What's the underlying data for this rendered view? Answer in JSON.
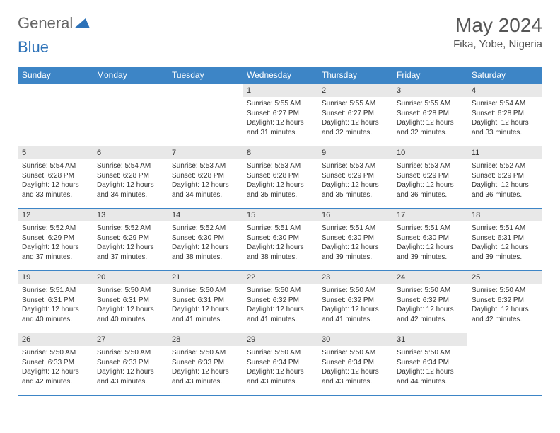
{
  "logo": {
    "part1": "General",
    "part2": "Blue"
  },
  "title": "May 2024",
  "location": "Fika, Yobe, Nigeria",
  "colors": {
    "header_bg": "#3d85c6",
    "header_fg": "#ffffff",
    "daynum_bg": "#e8e8e8",
    "border": "#3d85c6",
    "title_color": "#555555",
    "text_color": "#333333",
    "logo_gray": "#666666",
    "logo_blue": "#2d72b8"
  },
  "weekdays": [
    "Sunday",
    "Monday",
    "Tuesday",
    "Wednesday",
    "Thursday",
    "Friday",
    "Saturday"
  ],
  "weeks": [
    [
      {
        "n": "",
        "sr": "",
        "ss": "",
        "dl": "",
        "empty": true
      },
      {
        "n": "",
        "sr": "",
        "ss": "",
        "dl": "",
        "empty": true
      },
      {
        "n": "",
        "sr": "",
        "ss": "",
        "dl": "",
        "empty": true
      },
      {
        "n": "1",
        "sr": "Sunrise: 5:55 AM",
        "ss": "Sunset: 6:27 PM",
        "dl": "Daylight: 12 hours and 31 minutes."
      },
      {
        "n": "2",
        "sr": "Sunrise: 5:55 AM",
        "ss": "Sunset: 6:27 PM",
        "dl": "Daylight: 12 hours and 32 minutes."
      },
      {
        "n": "3",
        "sr": "Sunrise: 5:55 AM",
        "ss": "Sunset: 6:28 PM",
        "dl": "Daylight: 12 hours and 32 minutes."
      },
      {
        "n": "4",
        "sr": "Sunrise: 5:54 AM",
        "ss": "Sunset: 6:28 PM",
        "dl": "Daylight: 12 hours and 33 minutes."
      }
    ],
    [
      {
        "n": "5",
        "sr": "Sunrise: 5:54 AM",
        "ss": "Sunset: 6:28 PM",
        "dl": "Daylight: 12 hours and 33 minutes."
      },
      {
        "n": "6",
        "sr": "Sunrise: 5:54 AM",
        "ss": "Sunset: 6:28 PM",
        "dl": "Daylight: 12 hours and 34 minutes."
      },
      {
        "n": "7",
        "sr": "Sunrise: 5:53 AM",
        "ss": "Sunset: 6:28 PM",
        "dl": "Daylight: 12 hours and 34 minutes."
      },
      {
        "n": "8",
        "sr": "Sunrise: 5:53 AM",
        "ss": "Sunset: 6:28 PM",
        "dl": "Daylight: 12 hours and 35 minutes."
      },
      {
        "n": "9",
        "sr": "Sunrise: 5:53 AM",
        "ss": "Sunset: 6:29 PM",
        "dl": "Daylight: 12 hours and 35 minutes."
      },
      {
        "n": "10",
        "sr": "Sunrise: 5:53 AM",
        "ss": "Sunset: 6:29 PM",
        "dl": "Daylight: 12 hours and 36 minutes."
      },
      {
        "n": "11",
        "sr": "Sunrise: 5:52 AM",
        "ss": "Sunset: 6:29 PM",
        "dl": "Daylight: 12 hours and 36 minutes."
      }
    ],
    [
      {
        "n": "12",
        "sr": "Sunrise: 5:52 AM",
        "ss": "Sunset: 6:29 PM",
        "dl": "Daylight: 12 hours and 37 minutes."
      },
      {
        "n": "13",
        "sr": "Sunrise: 5:52 AM",
        "ss": "Sunset: 6:29 PM",
        "dl": "Daylight: 12 hours and 37 minutes."
      },
      {
        "n": "14",
        "sr": "Sunrise: 5:52 AM",
        "ss": "Sunset: 6:30 PM",
        "dl": "Daylight: 12 hours and 38 minutes."
      },
      {
        "n": "15",
        "sr": "Sunrise: 5:51 AM",
        "ss": "Sunset: 6:30 PM",
        "dl": "Daylight: 12 hours and 38 minutes."
      },
      {
        "n": "16",
        "sr": "Sunrise: 5:51 AM",
        "ss": "Sunset: 6:30 PM",
        "dl": "Daylight: 12 hours and 39 minutes."
      },
      {
        "n": "17",
        "sr": "Sunrise: 5:51 AM",
        "ss": "Sunset: 6:30 PM",
        "dl": "Daylight: 12 hours and 39 minutes."
      },
      {
        "n": "18",
        "sr": "Sunrise: 5:51 AM",
        "ss": "Sunset: 6:31 PM",
        "dl": "Daylight: 12 hours and 39 minutes."
      }
    ],
    [
      {
        "n": "19",
        "sr": "Sunrise: 5:51 AM",
        "ss": "Sunset: 6:31 PM",
        "dl": "Daylight: 12 hours and 40 minutes."
      },
      {
        "n": "20",
        "sr": "Sunrise: 5:50 AM",
        "ss": "Sunset: 6:31 PM",
        "dl": "Daylight: 12 hours and 40 minutes."
      },
      {
        "n": "21",
        "sr": "Sunrise: 5:50 AM",
        "ss": "Sunset: 6:31 PM",
        "dl": "Daylight: 12 hours and 41 minutes."
      },
      {
        "n": "22",
        "sr": "Sunrise: 5:50 AM",
        "ss": "Sunset: 6:32 PM",
        "dl": "Daylight: 12 hours and 41 minutes."
      },
      {
        "n": "23",
        "sr": "Sunrise: 5:50 AM",
        "ss": "Sunset: 6:32 PM",
        "dl": "Daylight: 12 hours and 41 minutes."
      },
      {
        "n": "24",
        "sr": "Sunrise: 5:50 AM",
        "ss": "Sunset: 6:32 PM",
        "dl": "Daylight: 12 hours and 42 minutes."
      },
      {
        "n": "25",
        "sr": "Sunrise: 5:50 AM",
        "ss": "Sunset: 6:32 PM",
        "dl": "Daylight: 12 hours and 42 minutes."
      }
    ],
    [
      {
        "n": "26",
        "sr": "Sunrise: 5:50 AM",
        "ss": "Sunset: 6:33 PM",
        "dl": "Daylight: 12 hours and 42 minutes."
      },
      {
        "n": "27",
        "sr": "Sunrise: 5:50 AM",
        "ss": "Sunset: 6:33 PM",
        "dl": "Daylight: 12 hours and 43 minutes."
      },
      {
        "n": "28",
        "sr": "Sunrise: 5:50 AM",
        "ss": "Sunset: 6:33 PM",
        "dl": "Daylight: 12 hours and 43 minutes."
      },
      {
        "n": "29",
        "sr": "Sunrise: 5:50 AM",
        "ss": "Sunset: 6:34 PM",
        "dl": "Daylight: 12 hours and 43 minutes."
      },
      {
        "n": "30",
        "sr": "Sunrise: 5:50 AM",
        "ss": "Sunset: 6:34 PM",
        "dl": "Daylight: 12 hours and 43 minutes."
      },
      {
        "n": "31",
        "sr": "Sunrise: 5:50 AM",
        "ss": "Sunset: 6:34 PM",
        "dl": "Daylight: 12 hours and 44 minutes."
      },
      {
        "n": "",
        "sr": "",
        "ss": "",
        "dl": "",
        "empty": true
      }
    ]
  ]
}
